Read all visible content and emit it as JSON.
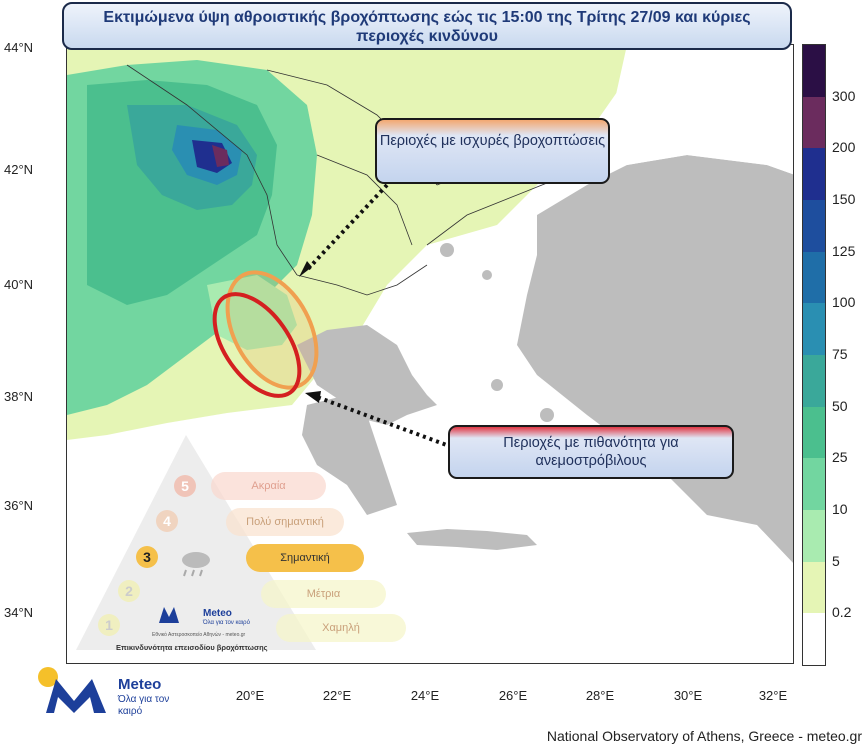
{
  "title": {
    "line1": "Εκτιμώμενα ύψη αθροιστικής βροχόπτωσης εώς τις 15:00 της Τρίτης 27/09 και κύριες",
    "line2": "περιοχές κινδύνου"
  },
  "callouts": {
    "heavy_rain": "Περιοχές με ισχυρές βροχοπτώσεις",
    "tornado": "Περιοχές με πιθανότητα για ανεμοστρόβιλους"
  },
  "axes": {
    "lat_labels": [
      "44°N",
      "42°N",
      "40°N",
      "38°N",
      "36°N",
      "34°N"
    ],
    "lon_labels": [
      "20°E",
      "22°E",
      "24°E",
      "26°E",
      "28°E",
      "30°E",
      "32°E"
    ]
  },
  "legend": {
    "labels": [
      "300",
      "200",
      "150",
      "125",
      "100",
      "75",
      "50",
      "25",
      "10",
      "5",
      "0.2"
    ],
    "colors": [
      "#2b0f45",
      "#6b2c5e",
      "#1f2f8f",
      "#1e4e9e",
      "#1f6ea8",
      "#2a8fb2",
      "#3aa89a",
      "#4bbf8e",
      "#72d6a0",
      "#a9ebb0",
      "#e5f5b5",
      "#ffffff"
    ]
  },
  "risk_scale": {
    "levels": [
      {
        "num": "5",
        "label": "Ακραία"
      },
      {
        "num": "4",
        "label": "Πολύ σημαντική"
      },
      {
        "num": "3",
        "label": "Σημαντική"
      },
      {
        "num": "2",
        "label": "Μέτρια"
      },
      {
        "num": "1",
        "label": "Χαμηλή"
      }
    ],
    "current_level": "3",
    "caption": "Επικινδυνότητα επεισοδίου βροχόπτωσης",
    "institute": "Εθνικό Αστεροσκοπείο Αθηνών - meteo.gr"
  },
  "brand": {
    "name": "Meteo",
    "slogan": "Όλα για τον καιρό"
  },
  "footer": "National Observatory of Athens, Greece - meteo.gr",
  "colors": {
    "sea": "#ffffff",
    "land_grey": "#bdbdbd",
    "rain_low": "#e5f5b5",
    "brand_blue": "#1d3f9a",
    "highlight_orange": "#f0a050",
    "highlight_red": "#d42020"
  }
}
